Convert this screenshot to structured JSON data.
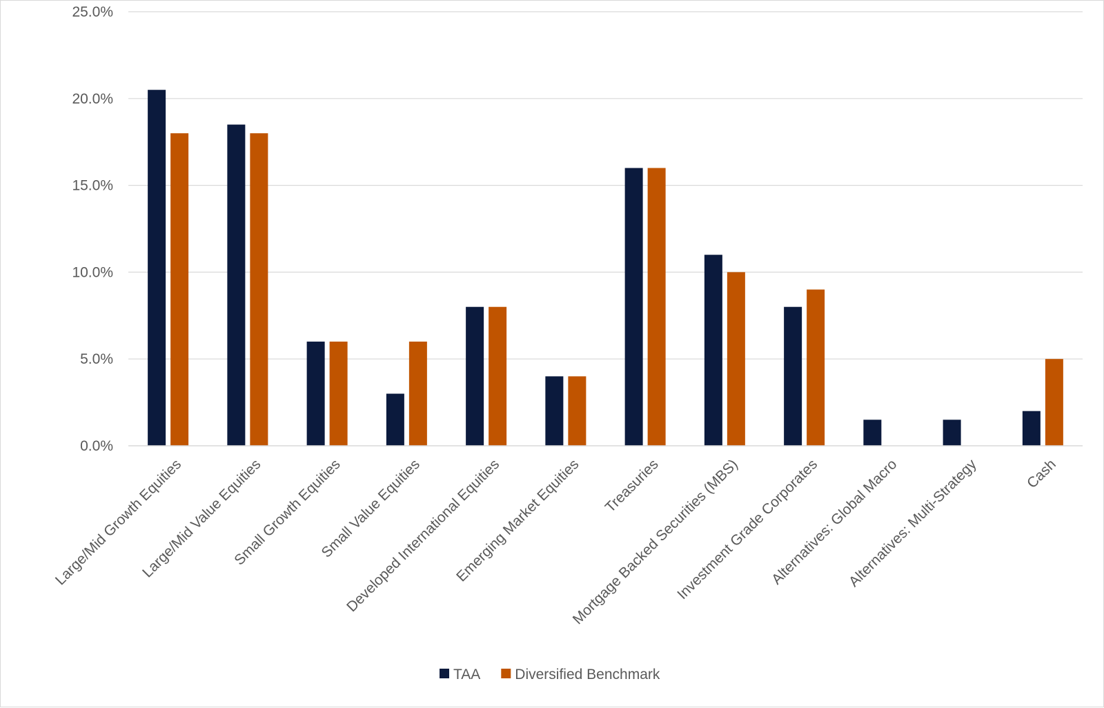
{
  "chart_data": {
    "type": "bar",
    "title": "",
    "xlabel": "",
    "ylabel": "",
    "ylim": [
      0,
      25
    ],
    "y_tick_values": [
      0,
      5,
      10,
      15,
      20,
      25
    ],
    "y_tick_labels": [
      "0.0%",
      "5.0%",
      "10.0%",
      "15.0%",
      "20.0%",
      "25.0%"
    ],
    "grid": true,
    "legend_position": "bottom",
    "categories": [
      "Large/Mid Growth Equities",
      "Large/Mid Value Equities",
      "Small Growth Equities",
      "Small Value Equities",
      "Developed International Equities",
      "Emerging Market Equities",
      "Treasuries",
      "Mortgage Backed Securities (MBS)",
      "Investment Grade Corporates",
      "Alternatives: Global Macro",
      "Alternatives: Multi-Strategy",
      "Cash"
    ],
    "series": [
      {
        "name": "TAA",
        "color": "#0b1a3d",
        "values": [
          20.5,
          18.5,
          6,
          3,
          8,
          4,
          16,
          11,
          8,
          1.5,
          1.5,
          2
        ]
      },
      {
        "name": "Diversified Benchmark",
        "color": "#c05400",
        "values": [
          18,
          18,
          6,
          6,
          8,
          4,
          16,
          10,
          9,
          0,
          0,
          5
        ]
      }
    ]
  }
}
